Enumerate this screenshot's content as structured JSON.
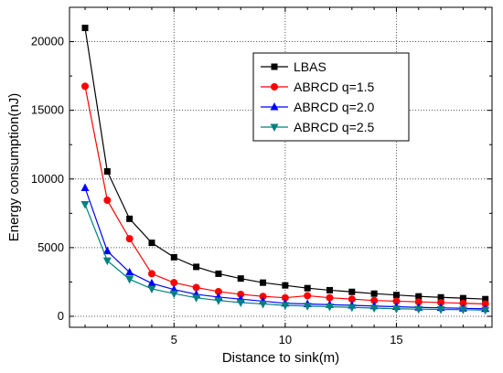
{
  "chart_data": {
    "type": "line",
    "xlabel": "Distance to sink(m)",
    "ylabel": "Energy consumption(nJ)",
    "xlim": [
      0.3,
      19.3
    ],
    "ylim": [
      -800,
      22500
    ],
    "xticks": [
      5,
      10,
      15
    ],
    "yticks": [
      0,
      5000,
      10000,
      15000,
      20000
    ],
    "grid": true,
    "legend_position": "top-right",
    "x": [
      1,
      2,
      3,
      4,
      5,
      6,
      7,
      8,
      9,
      10,
      11,
      12,
      13,
      14,
      15,
      16,
      17,
      18,
      19
    ],
    "series": [
      {
        "name": "LBAS",
        "color": "#000000",
        "marker": "square",
        "values": [
          21000,
          10550,
          7100,
          5350,
          4300,
          3600,
          3100,
          2750,
          2450,
          2250,
          2050,
          1900,
          1780,
          1650,
          1550,
          1450,
          1380,
          1320,
          1250
        ]
      },
      {
        "name": "ABRCD q=1.5",
        "color": "#ff0000",
        "marker": "circle",
        "values": [
          16750,
          8450,
          5650,
          3100,
          2450,
          2100,
          1800,
          1600,
          1450,
          1350,
          1500,
          1350,
          1250,
          1150,
          1100,
          1050,
          1000,
          950,
          900
        ]
      },
      {
        "name": "ABRCD q=2.0",
        "color": "#0000ff",
        "marker": "triangle-up",
        "values": [
          9350,
          4750,
          3200,
          2400,
          1950,
          1600,
          1400,
          1250,
          1100,
          950,
          900,
          850,
          800,
          750,
          700,
          650,
          620,
          580,
          550
        ]
      },
      {
        "name": "ABRCD q=2.5",
        "color": "#008080",
        "marker": "triangle-down",
        "values": [
          8150,
          4050,
          2700,
          2000,
          1650,
          1350,
          1150,
          1000,
          900,
          800,
          750,
          700,
          650,
          600,
          550,
          520,
          500,
          480,
          450
        ]
      }
    ]
  }
}
